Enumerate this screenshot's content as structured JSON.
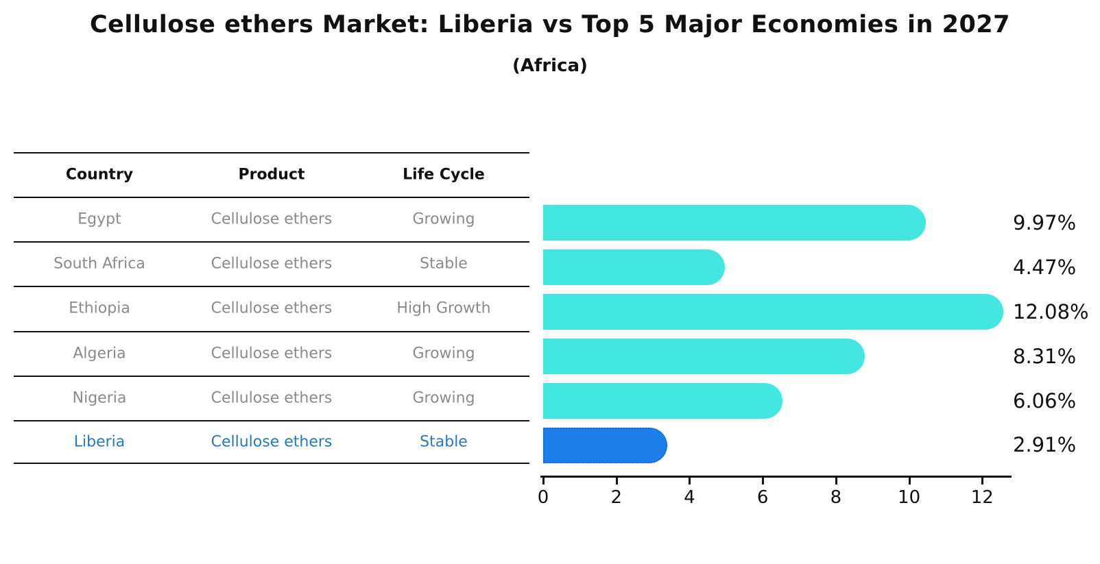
{
  "title": "Cellulose ethers Market: Liberia vs Top 5 Major Economies in 2027",
  "subtitle": "(Africa)",
  "table": {
    "headers": [
      "Country",
      "Product",
      "Life Cycle"
    ],
    "rows": [
      {
        "country": "Egypt",
        "product": "Cellulose ethers",
        "life_cycle": "Growing",
        "highlight": false
      },
      {
        "country": "South Africa",
        "product": "Cellulose ethers",
        "life_cycle": "Stable",
        "highlight": false
      },
      {
        "country": "Ethiopia",
        "product": "Cellulose ethers",
        "life_cycle": "High Growth",
        "highlight": false
      },
      {
        "country": "Algeria",
        "product": "Cellulose ethers",
        "life_cycle": "Growing",
        "highlight": false
      },
      {
        "country": "Nigeria",
        "product": "Cellulose ethers",
        "life_cycle": "Growing",
        "highlight": false
      },
      {
        "country": "Liberia",
        "product": "Cellulose ethers",
        "life_cycle": "Stable",
        "highlight": true
      }
    ]
  },
  "chart_data": {
    "type": "bar",
    "orientation": "horizontal",
    "title": "Cellulose ethers Market: Liberia vs Top 5 Major Economies in 2027 (Africa)",
    "categories": [
      "Egypt",
      "South Africa",
      "Ethiopia",
      "Algeria",
      "Nigeria",
      "Liberia"
    ],
    "values": [
      9.97,
      4.47,
      12.08,
      8.31,
      6.06,
      2.91
    ],
    "value_labels": [
      "9.97%",
      "4.47%",
      "12.08%",
      "8.31%",
      "6.06%",
      "2.91%"
    ],
    "x_ticks": [
      "0",
      "2",
      "4",
      "6",
      "8",
      "10",
      "12"
    ],
    "xlim": [
      0,
      12.8
    ],
    "grid": false,
    "legend": false,
    "highlight_index": 5
  },
  "colors": {
    "bar_default": "#44E6E0",
    "bar_highlight": "#1E7FE8",
    "bar_highlight_border": "#1565D8",
    "highlight_text": "#2679BE",
    "row_text": "#8A8A8A",
    "heading_text": "#111111",
    "axis": "#111111"
  }
}
